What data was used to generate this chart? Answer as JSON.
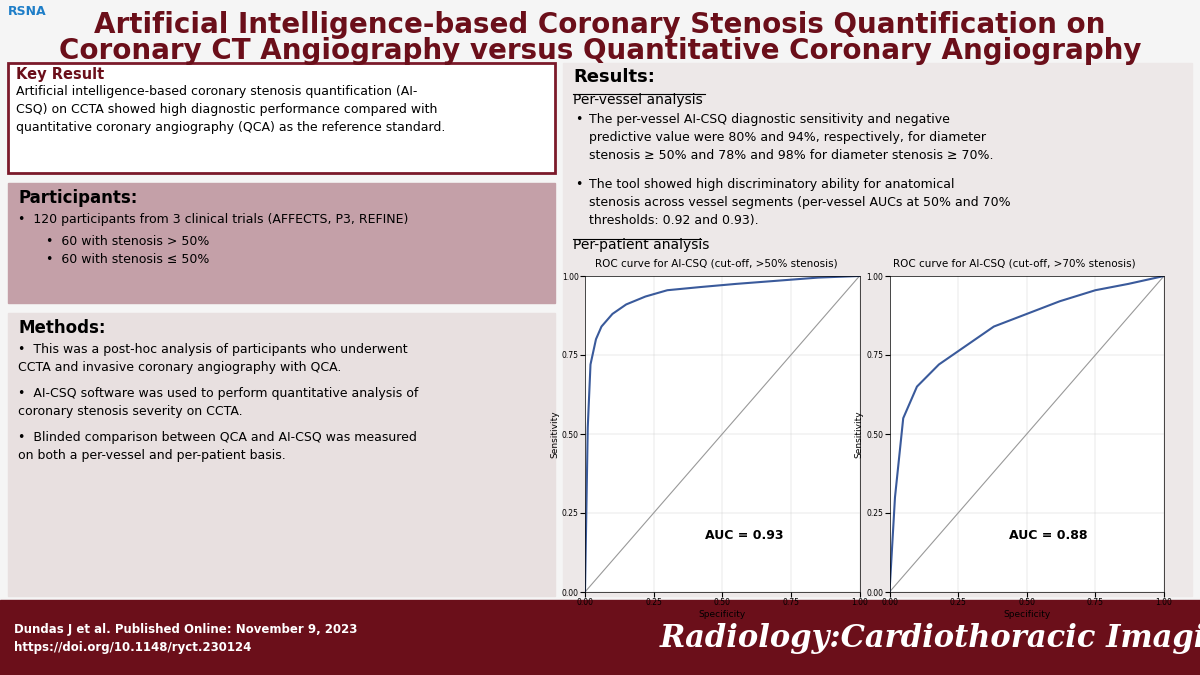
{
  "title_line1": "Artificial Intelligence-based Coronary Stenosis Quantification on",
  "title_line2": "Coronary CT Angiography versus Quantitative Coronary Angiography",
  "title_color": "#6B0F1A",
  "title_fontsize": 20,
  "bg_color": "#F5F5F5",
  "footer_bg": "#6B0F1A",
  "footer_text1": "Dundas J et al. Published Online: November 9, 2023",
  "footer_text2": "https://doi.org/10.1148/ryct.230124",
  "footer_journal": "Radiology:Cardiothoracic Imaging",
  "key_result_title": "Key Result",
  "key_result_body": "Artificial intelligence-based coronary stenosis quantification (AI-\nCSQ) on CCTA showed high diagnostic performance compared with\nquantitative coronary angiography (QCA) as the reference standard.",
  "participants_title": "Participants:",
  "part_line1": "120 participants from 3 clinical trials (AFFECTS, P3, REFINE)",
  "part_line2": "60 with stenosis > 50%",
  "part_line3": "60 with stenosis ≤ 50%",
  "methods_title": "Methods:",
  "meth_line1": "This was a post-hoc analysis of participants who underwent\nCCTA and invasive coronary angiography with QCA.",
  "meth_line2": "AI-CSQ software was used to perform quantitative analysis of\ncoronary stenosis severity on CCTA.",
  "meth_line3": "Blinded comparison between QCA and AI-CSQ was measured\non both a per-vessel and per-patient basis.",
  "results_title": "Results:",
  "pervessel_title": "Per-vessel analysis",
  "pv_bullet1": "The per-vessel AI-CSQ diagnostic sensitivity and negative\npredictive value were 80% and 94%, respectively, for diameter\nstenosis ≥ 50% and 78% and 98% for diameter stenosis ≥ 70%.",
  "pv_bullet2": "The tool showed high discriminatory ability for anatomical\nstenosis across vessel segments (per-vessel AUCs at 50% and 70%\nthresholds: 0.92 and 0.93).",
  "perpatient_title": "Per-patient analysis",
  "roc1_title": "ROC curve for AI-CSQ (cut-off, >50% stenosis)",
  "roc1_auc": "AUC = 0.93",
  "roc2_title": "ROC curve for AI-CSQ (cut-off, >70% stenosis)",
  "roc2_auc": "AUC = 0.88",
  "participants_bg": "#C4A0A8",
  "methods_bg": "#E8E0E0",
  "key_result_border": "#7B1A2A",
  "results_bg": "#EDE8E8",
  "roc_line_color": "#3A5A9B"
}
